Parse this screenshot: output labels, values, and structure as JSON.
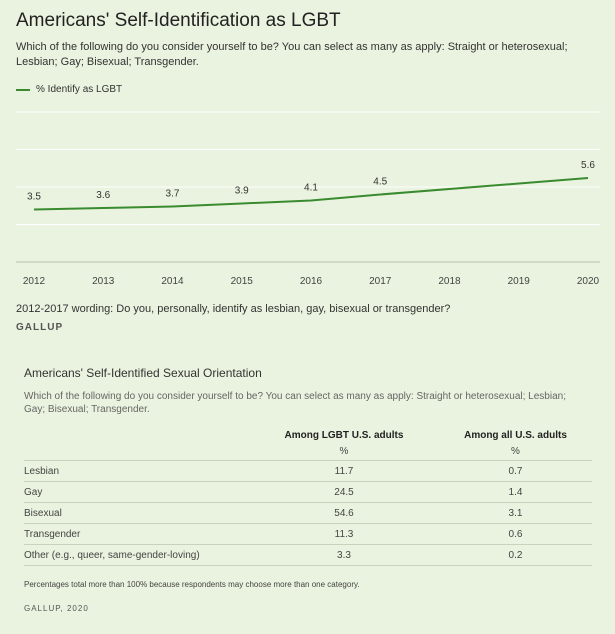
{
  "chart": {
    "title": "Americans' Self-Identification as LGBT",
    "subtitle": "Which of the following do you consider yourself to be? You can select as many as apply: Straight or heterosexual; Lesbian; Gay; Bisexual; Transgender.",
    "legend_label": "% Identify as LGBT",
    "note": "2012-2017 wording: Do you, personally, identify as lesbian, gay, bisexual or transgender?",
    "brand": "GALLUP"
  },
  "chart_data": {
    "type": "line",
    "title": "Americans' Self-Identification as LGBT",
    "x": [
      "2012",
      "2013",
      "2014",
      "2015",
      "2016",
      "2017",
      "2018",
      "2019",
      "2020"
    ],
    "series": [
      {
        "name": "% Identify as LGBT",
        "color": "#3a8b2f",
        "points": [
          {
            "x": "2012",
            "y": 3.5
          },
          {
            "x": "2013",
            "y": 3.6
          },
          {
            "x": "2014",
            "y": 3.7
          },
          {
            "x": "2015",
            "y": 3.9
          },
          {
            "x": "2016",
            "y": 4.1
          },
          {
            "x": "2017",
            "y": 4.5
          },
          {
            "x": "2020",
            "y": 5.6
          }
        ]
      }
    ],
    "ylim": [
      0,
      10
    ],
    "xlabel": "",
    "ylabel": "",
    "grid": true,
    "legend": "top-left"
  },
  "table": {
    "title": "Americans' Self-Identified Sexual Orientation",
    "subtitle": "Which of the following do you consider yourself to be? You can select as many as apply: Straight or heterosexual; Lesbian; Gay; Bisexual; Transgender.",
    "columns": [
      "Among LGBT U.S. adults",
      "Among all U.S. adults"
    ],
    "unit_row": [
      "%",
      "%"
    ],
    "rows": [
      {
        "label": "Lesbian",
        "lgbt": "11.7",
        "all": "0.7"
      },
      {
        "label": "Gay",
        "lgbt": "24.5",
        "all": "1.4"
      },
      {
        "label": "Bisexual",
        "lgbt": "54.6",
        "all": "3.1"
      },
      {
        "label": "Transgender",
        "lgbt": "11.3",
        "all": "0.6"
      },
      {
        "label": "Other (e.g., queer, same-gender-loving)",
        "lgbt": "3.3",
        "all": "0.2"
      }
    ],
    "footnote": "Percentages total more than 100% because respondents may choose more than one category.",
    "brand": "GALLUP, 2020"
  }
}
